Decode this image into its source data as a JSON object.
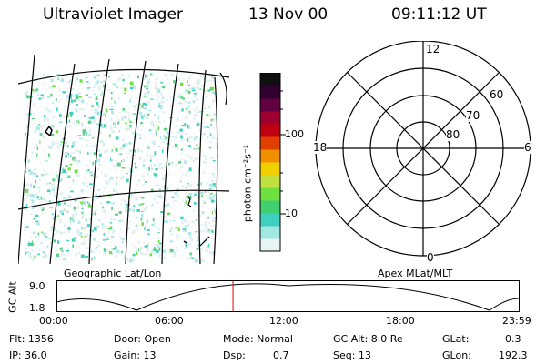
{
  "header": {
    "instrument": "Ultraviolet Imager",
    "date": "13 Nov 00",
    "time": "09:11:12 UT"
  },
  "left_panel": {
    "label": "Geographic Lat/Lon"
  },
  "right_panel": {
    "label": "Apex MLat/MLT",
    "mlt_labels": {
      "top": "12",
      "left": "18",
      "right": "6",
      "bottom": "0"
    },
    "lat_labels": [
      "60",
      "70",
      "80"
    ]
  },
  "colorbar": {
    "unit_label": "photon cm⁻²s⁻¹",
    "tick_100": "100",
    "tick_10": "10",
    "colors": [
      "#e8f4f4",
      "#a0e8e0",
      "#40d0c0",
      "#40d070",
      "#70e040",
      "#c0e040",
      "#f0d000",
      "#f09000",
      "#e04000",
      "#c00010",
      "#a00030",
      "#600040",
      "#300030",
      "#101010"
    ]
  },
  "altitude_plot": {
    "ylabel": "GC Alt",
    "ymax": "9.0",
    "ymin": "1.8",
    "x_ticks": [
      "00:00",
      "06:00",
      "12:00",
      "18:00",
      "23:59"
    ],
    "current_time_fraction": 0.382
  },
  "status": {
    "flt": "Flt: 1356",
    "ip": "IP: 36.0",
    "door": "Door: Open",
    "gain": "Gain: 13",
    "mode": "Mode: Normal",
    "dsp_label": "Dsp:",
    "dsp_value": "0.7",
    "gc_alt": "GC Alt: 8.0 Re",
    "seq": "Seq: 13",
    "glat_label": "GLat:",
    "glat_value": "0.3",
    "glon_label": "GLon:",
    "glon_value": "192.3"
  }
}
